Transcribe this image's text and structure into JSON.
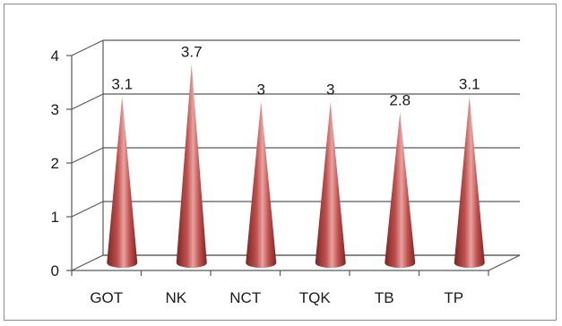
{
  "chart_data": {
    "type": "bar",
    "shape": "cone",
    "categories": [
      "GOT",
      "NK",
      "NCT",
      "TQK",
      "TB",
      "TP"
    ],
    "values": [
      3.1,
      3.7,
      3.0,
      3.0,
      2.8,
      3.1
    ],
    "data_labels": [
      "3.1",
      "3.7",
      "3",
      "3",
      "2.8",
      "3.1"
    ],
    "y_ticks": [
      "0",
      "1",
      "2",
      "3",
      "4"
    ],
    "ylim": [
      0,
      4
    ],
    "grid": true,
    "legend": "none",
    "colors": {
      "cone_main": "#c0504d",
      "cone_dark": "#7a2624",
      "cone_light": "#e8a3a1",
      "grid": "#595959"
    }
  }
}
